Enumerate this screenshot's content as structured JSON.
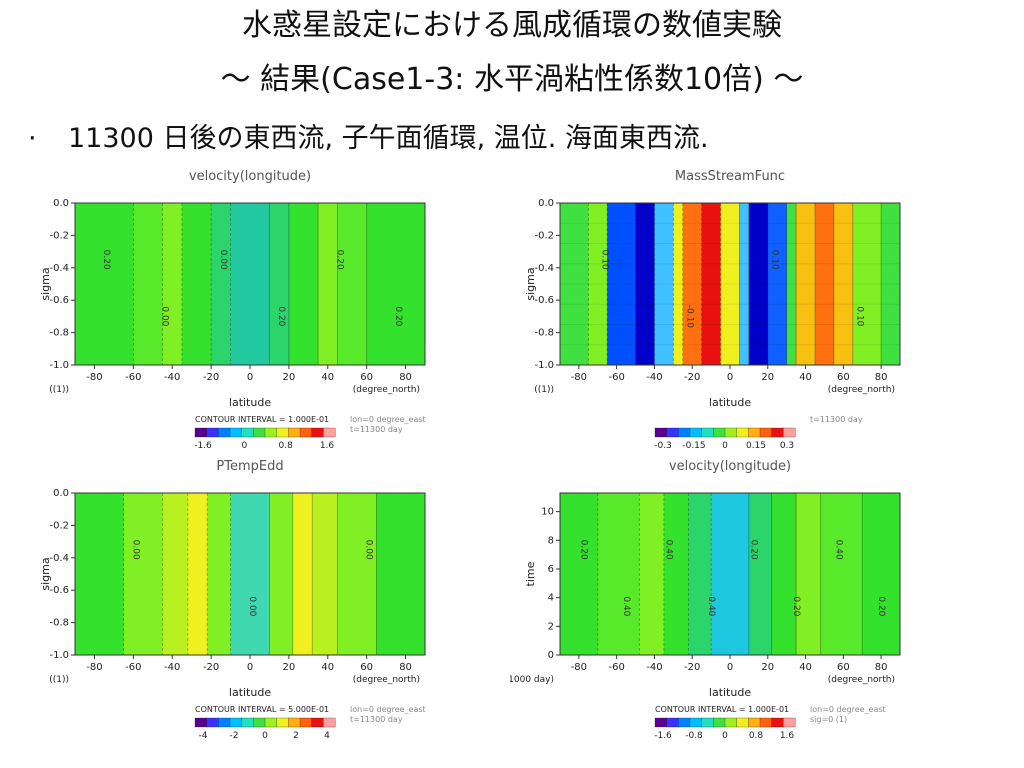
{
  "slide": {
    "title_line1": "水惑星設定における風成循環の数値実験",
    "title_line2": "〜 結果(Case1-3: 水平渦粘性係数10倍) 〜",
    "bullet": "11300 日後の東西流, 子午面循環, 温位. 海面東西流."
  },
  "chart_data": [
    {
      "type": "heatmap",
      "title": "velocity(longitude)",
      "xlabel": "latitude",
      "ylabel": "sigma",
      "x_unit": "(degree_north)",
      "y_unit": "((1))",
      "xlim": [
        -90,
        90
      ],
      "ylim": [
        -1.0,
        0.0
      ],
      "x_ticks": [
        "-80",
        "-60",
        "-40",
        "-20",
        "0",
        "20",
        "40",
        "60",
        "80"
      ],
      "y_ticks": [
        "0.0",
        "-0.2",
        "-0.4",
        "-0.6",
        "-0.8",
        "-1.0"
      ],
      "contour_labels": [
        "0.20",
        "0.00",
        "0.00",
        "0.20",
        "0.20",
        "0.20"
      ],
      "colorbar": {
        "ticks": [
          "-1.6",
          "0",
          "0.8",
          "1.6"
        ],
        "note": "CONTOUR INTERVAL = 1.000E-01"
      },
      "meta": [
        "lon=0 degree_east",
        "t=11300 day"
      ],
      "bands_x": [
        -90,
        -60,
        -45,
        -35,
        -20,
        -10,
        10,
        20,
        35,
        45,
        60,
        90
      ],
      "bands_color": [
        "#34e12c",
        "#58ea2a",
        "#80f024",
        "#34e12c",
        "#2cd56c",
        "#22c8a0",
        "#2cd56c",
        "#34e12c",
        "#80f024",
        "#58ea2a",
        "#34e12c"
      ]
    },
    {
      "type": "heatmap",
      "title": "MassStreamFunc",
      "xlabel": "latitude",
      "ylabel": "sigma",
      "x_unit": "(degree_north)",
      "y_unit": "((1))",
      "xlim": [
        -90,
        90
      ],
      "ylim": [
        -1.0,
        0.0
      ],
      "x_ticks": [
        "-80",
        "-60",
        "-40",
        "-20",
        "0",
        "20",
        "40",
        "60",
        "80"
      ],
      "y_ticks": [
        "0.0",
        "-0.2",
        "-0.4",
        "-0.6",
        "-0.8",
        "-1.0"
      ],
      "contour_labels": [
        "0.10",
        "-0.10",
        "0.10",
        "0.10"
      ],
      "colorbar": {
        "ticks": [
          "-0.3",
          "-0.15",
          "0",
          "0.15",
          "0.3"
        ]
      },
      "meta": [
        "t=11300 day"
      ],
      "bands_x": [
        -90,
        -75,
        -65,
        -50,
        -40,
        -30,
        -25,
        -15,
        -5,
        5,
        10,
        20,
        30,
        35,
        45,
        55,
        65,
        80,
        90
      ],
      "bands_color": [
        "#40e040",
        "#80f024",
        "#0050ff",
        "#0000c8",
        "#40c0ff",
        "#f0f020",
        "#ff7010",
        "#e81010",
        "#f0f020",
        "#40c0ff",
        "#0000c8",
        "#1060ff",
        "#40e040",
        "#f8c010",
        "#ff7010",
        "#f8c010",
        "#80f024",
        "#40e040"
      ]
    },
    {
      "type": "heatmap",
      "title": "PTempEdd",
      "xlabel": "latitude",
      "ylabel": "sigma",
      "x_unit": "(degree_north)",
      "y_unit": "((1))",
      "xlim": [
        -90,
        90
      ],
      "ylim": [
        -1.0,
        0.0
      ],
      "x_ticks": [
        "-80",
        "-60",
        "-40",
        "-20",
        "0",
        "20",
        "40",
        "60",
        "80"
      ],
      "y_ticks": [
        "0.0",
        "-0.2",
        "-0.4",
        "-0.6",
        "-0.8",
        "-1.0"
      ],
      "contour_labels": [
        "0.00",
        "0.00",
        "0.00"
      ],
      "colorbar": {
        "ticks": [
          "-4",
          "-2",
          "0",
          "2",
          "4"
        ],
        "note": "CONTOUR INTERVAL = 5.000E-01"
      },
      "meta": [
        "lon=0 degree_east",
        "t=11300 day"
      ],
      "bands_x": [
        -90,
        -65,
        -45,
        -32,
        -22,
        -10,
        10,
        22,
        32,
        45,
        65,
        90
      ],
      "bands_color": [
        "#34e12c",
        "#80f024",
        "#b8f020",
        "#f0f020",
        "#80f024",
        "#40d8b0",
        "#80f024",
        "#f0f020",
        "#b8f020",
        "#80f024",
        "#34e12c"
      ]
    },
    {
      "type": "heatmap",
      "title": "velocity(longitude)",
      "xlabel": "latitude",
      "ylabel": "time",
      "x_unit": "(degree_north)",
      "y_unit": "(×1000 day)",
      "xlim": [
        -90,
        90
      ],
      "ylim": [
        0,
        11.3
      ],
      "x_ticks": [
        "-80",
        "-60",
        "-40",
        "-20",
        "0",
        "20",
        "40",
        "60",
        "80"
      ],
      "y_ticks": [
        "10",
        "8",
        "6",
        "4",
        "2",
        "0"
      ],
      "contour_labels": [
        "0.20",
        "0.40",
        "0.40",
        "0.40",
        "0.20",
        "0.20",
        "0.40",
        "0.20"
      ],
      "colorbar": {
        "ticks": [
          "-1.6",
          "-0.8",
          "0",
          "0.8",
          "1.6"
        ],
        "note": "CONTOUR INTERVAL = 1.000E-01"
      },
      "meta": [
        "lon=0 degree_east",
        "sig=0 (1)"
      ],
      "bands_x": [
        -90,
        -70,
        -48,
        -35,
        -22,
        -10,
        10,
        22,
        35,
        48,
        70,
        90
      ],
      "bands_color": [
        "#34e12c",
        "#58ea2a",
        "#80f024",
        "#34e12c",
        "#2cd56c",
        "#1ec8e0",
        "#2cd56c",
        "#34e12c",
        "#80f024",
        "#58ea2a",
        "#34e12c"
      ]
    }
  ]
}
